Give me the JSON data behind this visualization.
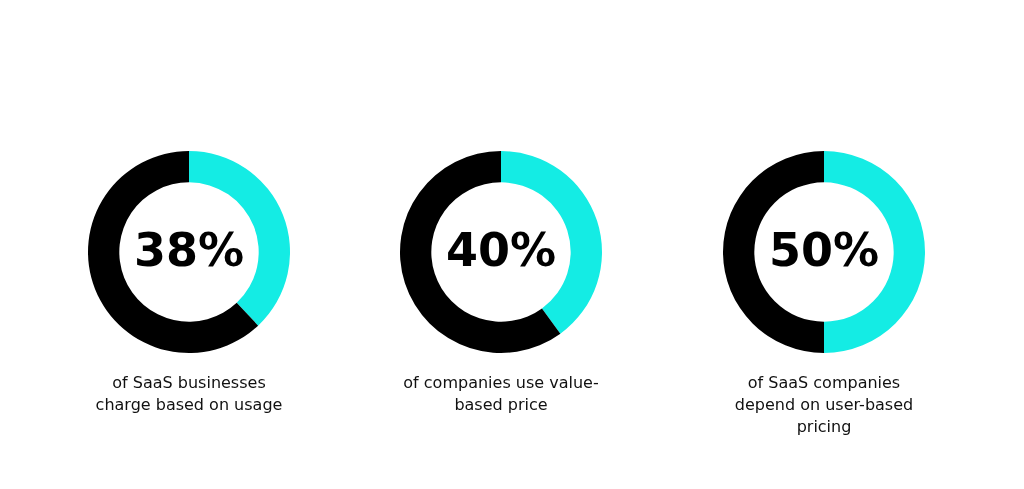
{
  "chart_data": [
    {
      "type": "donut",
      "title": "of SaaS businesses charge based on usage",
      "categories": [
        null,
        null
      ],
      "values": [
        38,
        62
      ],
      "colors": [
        "#14ece4",
        "#000000"
      ],
      "value_labels": [
        "38%",
        null
      ],
      "legend": false
    },
    {
      "type": "donut",
      "title": "of companies use value-based price",
      "categories": [
        null,
        null
      ],
      "values": [
        40,
        60
      ],
      "colors": [
        "#14ece4",
        "#000000"
      ],
      "value_labels": [
        "40%",
        null
      ],
      "legend": false
    },
    {
      "type": "donut",
      "title": "of SaaS companies depend on user-based pricing",
      "categories": [
        null,
        null
      ],
      "values": [
        50,
        50
      ],
      "colors": [
        "#14ece4",
        "#000000"
      ],
      "value_labels": [
        "50%",
        null
      ],
      "legend": false
    }
  ]
}
